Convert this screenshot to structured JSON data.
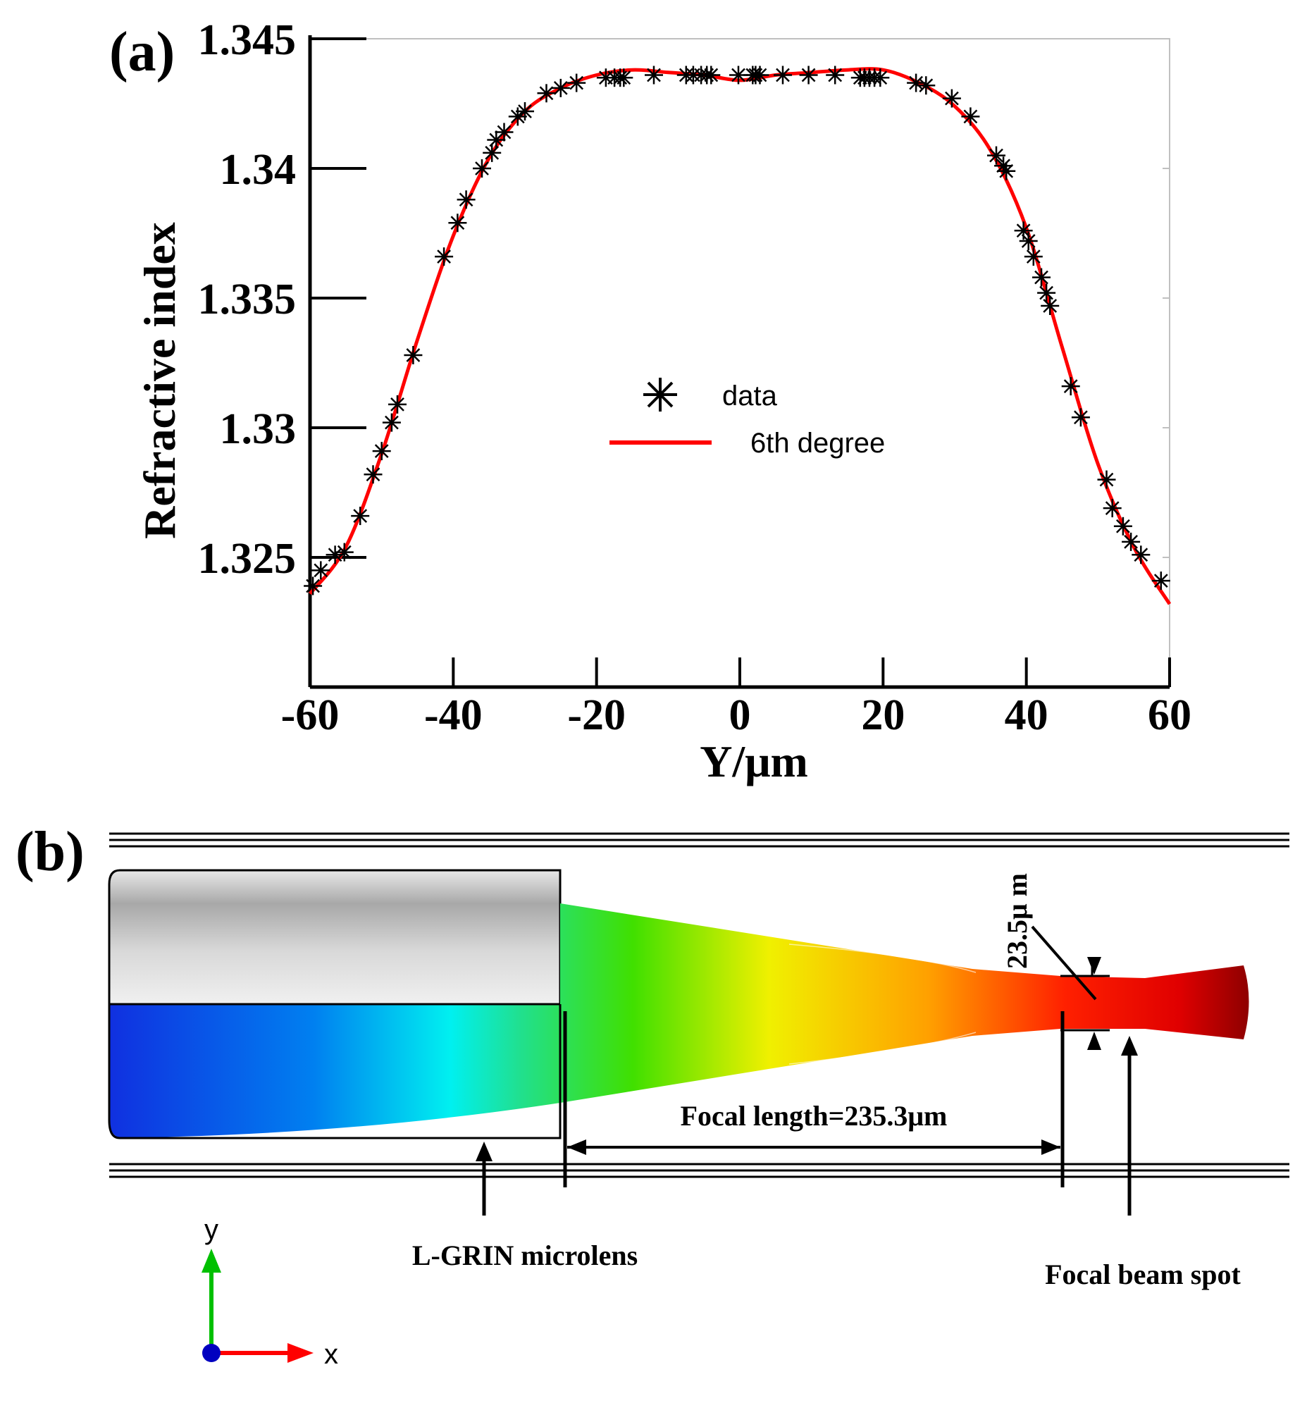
{
  "panel_a": {
    "label": "(a)",
    "legend": {
      "data_label": "data",
      "fit_label": "6th degree",
      "placement": "center"
    }
  },
  "panel_b": {
    "label": "(b)",
    "focal_length_label": "Focal length=235.3μm",
    "spot_size_label": "23.5μ m",
    "lens_label": "L-GRIN microlens",
    "spot_label": "Focal beam spot",
    "axis_y_label": "y",
    "axis_x_label": "x"
  },
  "colors": {
    "fit": "#ff0000",
    "data": "#000000",
    "axis": "#000000",
    "lens_gray": "#c8c8c8",
    "beam_blue": "#1030e0",
    "beam_cyan": "#00f0f0",
    "beam_green": "#20e080",
    "beam_yellow": "#f0f000",
    "beam_red": "#f00000",
    "beam_darkred": "#900000",
    "y_axis_arrow": "#00c000",
    "x_axis_arrow": "#ff0000",
    "origin_dot": "#0000c0"
  },
  "chart_data": {
    "type": "scatter",
    "title": "",
    "xlabel": "Y/μm",
    "ylabel": "Refractive index",
    "xlim": [
      -60,
      60
    ],
    "ylim": [
      1.32,
      1.345
    ],
    "xticks": [
      -60,
      -40,
      -20,
      0,
      20,
      40,
      60
    ],
    "xtick_labels": [
      "-60",
      "-40",
      "-20",
      "0",
      "20",
      "40",
      "60"
    ],
    "yticks": [
      1.325,
      1.33,
      1.335,
      1.34,
      1.345
    ],
    "ytick_labels": [
      "1.325",
      "1.33",
      "1.335",
      "1.34",
      "1.345"
    ],
    "grid": false,
    "series": [
      {
        "name": "data",
        "kind": "scatter",
        "marker": "asterisk",
        "points": [
          [
            -59.6,
            1.3239
          ],
          [
            -58.5,
            1.3245
          ],
          [
            -56.5,
            1.3251
          ],
          [
            -55.2,
            1.3252
          ],
          [
            -53.0,
            1.3266
          ],
          [
            -51.2,
            1.3282
          ],
          [
            -50.0,
            1.3291
          ],
          [
            -48.6,
            1.3302
          ],
          [
            -47.8,
            1.3309
          ],
          [
            -45.6,
            1.3328
          ],
          [
            -41.3,
            1.3366
          ],
          [
            -39.4,
            1.3379
          ],
          [
            -38.2,
            1.3388
          ],
          [
            -36.0,
            1.34
          ],
          [
            -34.6,
            1.3406
          ],
          [
            -34.0,
            1.3411
          ],
          [
            -32.9,
            1.3414
          ],
          [
            -31.0,
            1.342
          ],
          [
            -30.0,
            1.3422
          ],
          [
            -27.0,
            1.3429
          ],
          [
            -25.0,
            1.3431
          ],
          [
            -22.8,
            1.3433
          ],
          [
            -18.7,
            1.3435
          ],
          [
            -17.5,
            1.3435
          ],
          [
            -16.7,
            1.3435
          ],
          [
            -16.2,
            1.3435
          ],
          [
            -12.0,
            1.3436
          ],
          [
            -7.5,
            1.3436
          ],
          [
            -6.5,
            1.3436
          ],
          [
            -5.4,
            1.3436
          ],
          [
            -4.6,
            1.3436
          ],
          [
            -4.0,
            1.3436
          ],
          [
            -0.2,
            1.3436
          ],
          [
            1.8,
            1.3436
          ],
          [
            2.2,
            1.3436
          ],
          [
            2.8,
            1.3436
          ],
          [
            6.0,
            1.3436
          ],
          [
            9.6,
            1.3436
          ],
          [
            13.3,
            1.3436
          ],
          [
            16.8,
            1.3435
          ],
          [
            17.4,
            1.3435
          ],
          [
            18.1,
            1.3435
          ],
          [
            18.8,
            1.3435
          ],
          [
            19.6,
            1.3435
          ],
          [
            24.6,
            1.3433
          ],
          [
            26.0,
            1.3432
          ],
          [
            29.6,
            1.3427
          ],
          [
            32.2,
            1.342
          ],
          [
            35.8,
            1.3405
          ],
          [
            36.8,
            1.3401
          ],
          [
            37.2,
            1.3399
          ],
          [
            39.6,
            1.3376
          ],
          [
            40.3,
            1.3372
          ],
          [
            41.0,
            1.3366
          ],
          [
            42.1,
            1.3358
          ],
          [
            42.8,
            1.3352
          ],
          [
            43.3,
            1.3347
          ],
          [
            46.2,
            1.3316
          ],
          [
            47.6,
            1.3304
          ],
          [
            51.2,
            1.328
          ],
          [
            52.0,
            1.3269
          ],
          [
            53.5,
            1.3262
          ],
          [
            54.6,
            1.3256
          ],
          [
            56.0,
            1.3251
          ],
          [
            58.8,
            1.3241
          ]
        ]
      },
      {
        "name": "6th degree",
        "kind": "line",
        "points": [
          [
            -60,
            1.3236
          ],
          [
            -55,
            1.3254
          ],
          [
            -50,
            1.329
          ],
          [
            -45,
            1.3334
          ],
          [
            -40,
            1.3374
          ],
          [
            -35,
            1.3404
          ],
          [
            -30,
            1.3422
          ],
          [
            -25,
            1.3431
          ],
          [
            -20,
            1.3436
          ],
          [
            -15,
            1.3438
          ],
          [
            -10,
            1.3437
          ],
          [
            -5,
            1.3436
          ],
          [
            0,
            1.3434
          ],
          [
            5,
            1.3436
          ],
          [
            10,
            1.3437
          ],
          [
            15,
            1.3438
          ],
          [
            20,
            1.3438
          ],
          [
            25,
            1.3433
          ],
          [
            30,
            1.3424
          ],
          [
            35,
            1.3407
          ],
          [
            40,
            1.3377
          ],
          [
            45,
            1.3331
          ],
          [
            50,
            1.3286
          ],
          [
            55,
            1.3254
          ],
          [
            60,
            1.3232
          ]
        ]
      }
    ]
  }
}
